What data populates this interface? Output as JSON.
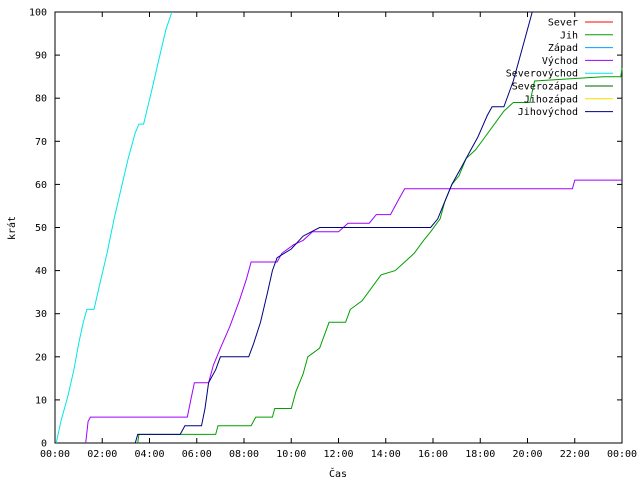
{
  "chart_data": {
    "type": "line",
    "xlabel": "Čas",
    "ylabel": "krát",
    "xlim": [
      0,
      24
    ],
    "ylim": [
      0,
      100
    ],
    "x_ticks": [
      "00:00",
      "02:00",
      "04:00",
      "06:00",
      "08:00",
      "10:00",
      "12:00",
      "14:00",
      "16:00",
      "18:00",
      "20:00",
      "22:00",
      "00:00"
    ],
    "y_ticks": [
      "0",
      "10",
      "20",
      "30",
      "40",
      "50",
      "60",
      "70",
      "80",
      "90",
      "100"
    ],
    "legend_position": "top-right",
    "grid": false,
    "series": [
      {
        "name": "Sever",
        "color": "#ff0000",
        "points": []
      },
      {
        "name": "Jih",
        "color": "#00a000",
        "points": [
          [
            3.5,
            0
          ],
          [
            3.55,
            2
          ],
          [
            6.8,
            2
          ],
          [
            6.9,
            4
          ],
          [
            8.3,
            4
          ],
          [
            8.5,
            6
          ],
          [
            9.2,
            6
          ],
          [
            9.3,
            8
          ],
          [
            10.0,
            8
          ],
          [
            10.2,
            12
          ],
          [
            10.5,
            16
          ],
          [
            10.7,
            20
          ],
          [
            11.2,
            22
          ],
          [
            11.4,
            25
          ],
          [
            11.6,
            28
          ],
          [
            12.3,
            28
          ],
          [
            12.5,
            31
          ],
          [
            13.0,
            33
          ],
          [
            13.4,
            36
          ],
          [
            13.8,
            39
          ],
          [
            14.4,
            40
          ],
          [
            14.8,
            42
          ],
          [
            15.2,
            44
          ],
          [
            15.6,
            47
          ],
          [
            15.9,
            49
          ],
          [
            16.3,
            52
          ],
          [
            16.5,
            56
          ],
          [
            16.8,
            60
          ],
          [
            17.1,
            62
          ],
          [
            17.4,
            66
          ],
          [
            17.8,
            68
          ],
          [
            18.2,
            71
          ],
          [
            18.6,
            74
          ],
          [
            19.0,
            77
          ],
          [
            19.4,
            79
          ],
          [
            20.1,
            79
          ],
          [
            20.3,
            84
          ],
          [
            23.2,
            85
          ],
          [
            23.95,
            85
          ],
          [
            24,
            87
          ]
        ]
      },
      {
        "name": "Západ",
        "color": "#00a0ff",
        "points": []
      },
      {
        "name": "Východ",
        "color": "#a000ff",
        "points": [
          [
            1.3,
            0
          ],
          [
            1.4,
            5
          ],
          [
            1.5,
            6
          ],
          [
            5.6,
            6
          ],
          [
            5.75,
            10
          ],
          [
            5.9,
            14
          ],
          [
            6.5,
            14
          ],
          [
            6.7,
            18
          ],
          [
            7.0,
            22
          ],
          [
            7.4,
            27
          ],
          [
            7.8,
            33
          ],
          [
            8.1,
            38
          ],
          [
            8.3,
            42
          ],
          [
            9.4,
            42
          ],
          [
            9.6,
            44
          ],
          [
            10.1,
            46
          ],
          [
            10.5,
            47
          ],
          [
            10.9,
            49
          ],
          [
            12.0,
            49
          ],
          [
            12.4,
            51
          ],
          [
            13.3,
            51
          ],
          [
            13.6,
            53
          ],
          [
            14.2,
            53
          ],
          [
            14.4,
            55
          ],
          [
            14.6,
            57
          ],
          [
            14.8,
            59
          ],
          [
            21.9,
            59
          ],
          [
            22.0,
            61
          ],
          [
            24,
            61
          ]
        ]
      },
      {
        "name": "Severovýchod",
        "color": "#00e6e6",
        "points": [
          [
            0.05,
            0
          ],
          [
            0.25,
            5
          ],
          [
            0.55,
            11
          ],
          [
            0.8,
            17
          ],
          [
            1.0,
            23
          ],
          [
            1.2,
            28
          ],
          [
            1.35,
            31
          ],
          [
            1.65,
            31
          ],
          [
            1.9,
            37
          ],
          [
            2.2,
            44
          ],
          [
            2.5,
            52
          ],
          [
            2.8,
            59
          ],
          [
            3.1,
            66
          ],
          [
            3.4,
            72
          ],
          [
            3.55,
            74
          ],
          [
            3.75,
            74
          ],
          [
            4.1,
            82
          ],
          [
            4.4,
            89
          ],
          [
            4.7,
            96
          ],
          [
            4.95,
            100
          ]
        ]
      },
      {
        "name": "Severozápad",
        "color": "#006400",
        "points": []
      },
      {
        "name": "Jihozápad",
        "color": "#ffd700",
        "points": []
      },
      {
        "name": "Jihovýchod",
        "color": "#000080",
        "points": [
          [
            3.4,
            0
          ],
          [
            3.5,
            2
          ],
          [
            5.3,
            2
          ],
          [
            5.5,
            4
          ],
          [
            6.2,
            4
          ],
          [
            6.35,
            8
          ],
          [
            6.5,
            14
          ],
          [
            6.8,
            17
          ],
          [
            7.0,
            20
          ],
          [
            8.2,
            20
          ],
          [
            8.4,
            23
          ],
          [
            8.7,
            28
          ],
          [
            9.0,
            35
          ],
          [
            9.2,
            40
          ],
          [
            9.4,
            43
          ],
          [
            10.0,
            45
          ],
          [
            10.5,
            48
          ],
          [
            11.2,
            50
          ],
          [
            15.9,
            50
          ],
          [
            16.2,
            52
          ],
          [
            16.5,
            56
          ],
          [
            16.8,
            60
          ],
          [
            17.2,
            64
          ],
          [
            17.6,
            68
          ],
          [
            17.9,
            71
          ],
          [
            18.3,
            76
          ],
          [
            18.5,
            78
          ],
          [
            19.0,
            78
          ],
          [
            19.4,
            84
          ],
          [
            19.8,
            92
          ],
          [
            20.1,
            98
          ],
          [
            20.2,
            100
          ]
        ]
      }
    ]
  }
}
